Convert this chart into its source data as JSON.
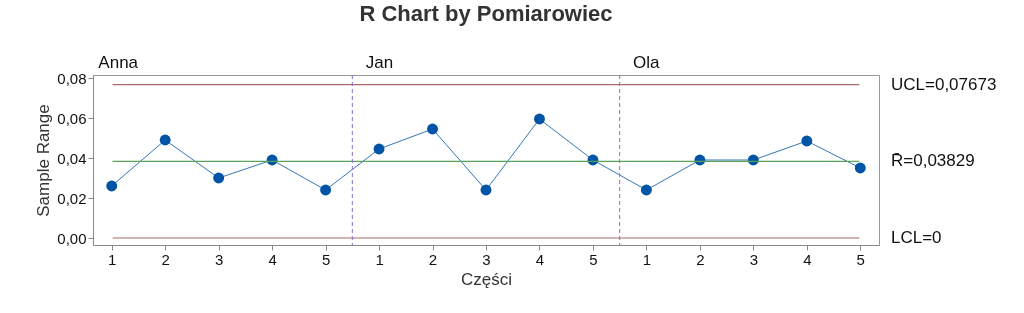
{
  "chart_data": {
    "type": "line",
    "title": "R Chart by Pomiarowiec",
    "xlabel": "Części",
    "ylabel": "Sample Range",
    "categories": [
      "1",
      "2",
      "3",
      "4",
      "5",
      "1",
      "2",
      "3",
      "4",
      "5",
      "1",
      "2",
      "3",
      "4",
      "5"
    ],
    "series": [
      {
        "color": "#0054a6",
        "values": [
          0.026,
          0.049,
          0.03,
          0.039,
          0.024,
          0.0445,
          0.0545,
          0.024,
          0.0595,
          0.039,
          0.024,
          0.039,
          0.039,
          0.0485,
          0.035
        ]
      }
    ],
    "ylim": [
      -0.0035,
      0.0815
    ],
    "yticks": [
      {
        "value": 0,
        "label": "0,00"
      },
      {
        "value": 0.02,
        "label": "0,02"
      },
      {
        "value": 0.04,
        "label": "0,04"
      },
      {
        "value": 0.06,
        "label": "0,06"
      },
      {
        "value": 0.08,
        "label": "0,08"
      }
    ],
    "ref_lines": [
      {
        "axis": "y",
        "value": 0.07673,
        "label": "UCL=0,07673",
        "color": "#a86a6a"
      },
      {
        "axis": "y",
        "value": 0.03829,
        "label": "R̄=0,03829",
        "color": "#5aa05a"
      },
      {
        "axis": "y",
        "value": 0,
        "label": "LCL=0",
        "color": "#a86a6a"
      }
    ],
    "annotations": [
      "Anna",
      "Jan",
      "Ola"
    ],
    "marker": "circle",
    "line_style": "solid",
    "grid": false
  }
}
